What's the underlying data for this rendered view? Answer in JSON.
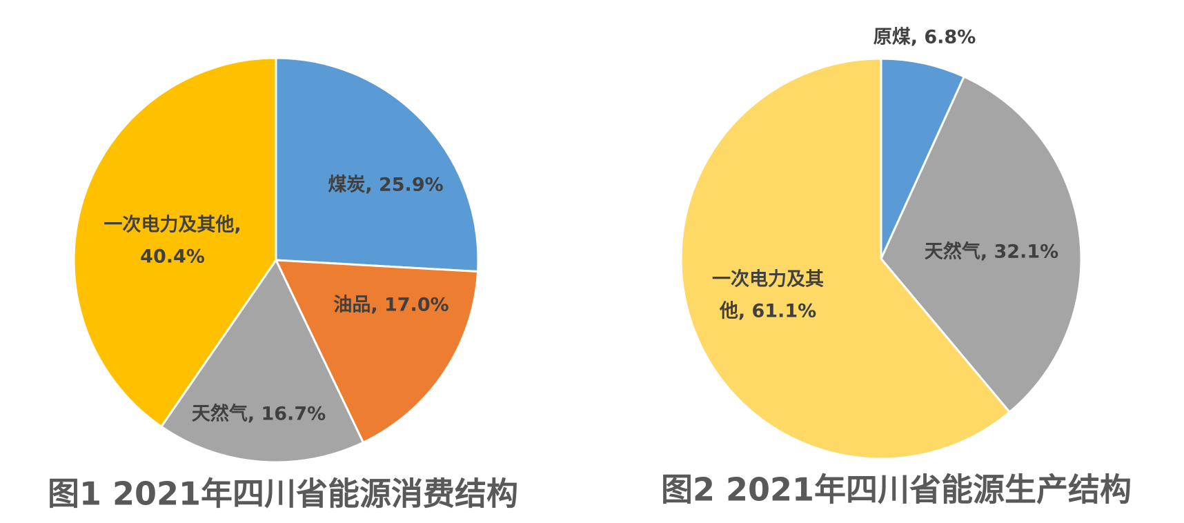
{
  "chart_data": [
    {
      "type": "pie",
      "title": "图1  2021年四川省能源消费结构",
      "values": [
        25.9,
        17.0,
        16.7,
        40.4
      ],
      "value_labels": [
        [
          "煤炭, 25.9%"
        ],
        [
          "油品, 17.0%"
        ],
        [
          "天然气, 16.7%"
        ],
        [
          "一次电力及其他,",
          "40.4%"
        ]
      ],
      "colors": [
        "#5b9bd5",
        "#ed7d31",
        "#a5a5a5",
        "#ffc000"
      ]
    },
    {
      "type": "pie",
      "title": "图2 2021年四川省能源生产结构",
      "values": [
        6.8,
        32.1,
        61.1
      ],
      "value_labels": [
        [
          "原煤, 6.8%"
        ],
        [
          "天然气, 32.1%"
        ],
        [
          "一次电力及其",
          "他, 61.1%"
        ]
      ],
      "colors": [
        "#5b9bd5",
        "#a5a5a5",
        "#ffd966"
      ]
    }
  ]
}
